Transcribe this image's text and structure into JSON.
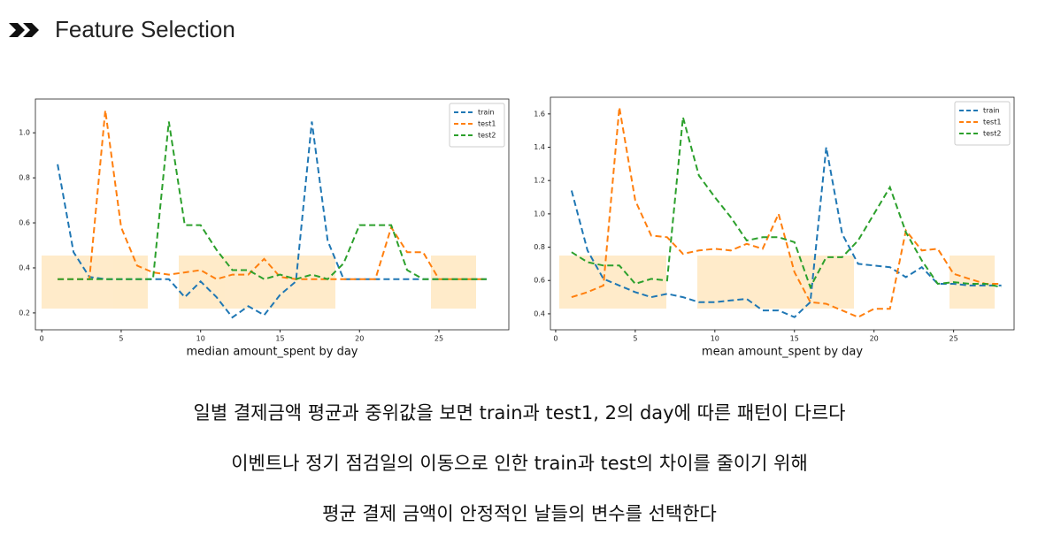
{
  "header": {
    "title": "Feature Selection"
  },
  "chart_data": [
    {
      "type": "line",
      "xlabel": "median amount_spent by day",
      "x": [
        1,
        2,
        3,
        4,
        5,
        6,
        7,
        8,
        9,
        10,
        11,
        12,
        13,
        14,
        15,
        16,
        17,
        18,
        19,
        20,
        21,
        22,
        23,
        24,
        25,
        26,
        27,
        28
      ],
      "xlim": [
        -0.4,
        29.4
      ],
      "xticks": [
        0,
        5,
        10,
        15,
        20,
        25
      ],
      "ylim": [
        0.125,
        1.15
      ],
      "yticks": [
        0.2,
        0.4,
        0.6,
        0.8,
        {
          "value": 1,
          "label": "1.0"
        }
      ],
      "legend": "upper right",
      "series": [
        {
          "name": "train",
          "color": "#1f77b4",
          "values": [
            0.86,
            0.47,
            0.36,
            0.35,
            0.35,
            0.35,
            0.35,
            0.35,
            0.27,
            0.34,
            0.27,
            0.18,
            0.23,
            0.19,
            0.28,
            0.34,
            1.05,
            0.52,
            0.35,
            0.35,
            0.35,
            0.35,
            0.35,
            0.35,
            0.35,
            0.35,
            0.35,
            0.35
          ]
        },
        {
          "name": "test1",
          "color": "#ff7f0e",
          "values": [
            0.35,
            0.35,
            0.35,
            1.1,
            0.58,
            0.41,
            0.38,
            0.37,
            0.38,
            0.39,
            0.35,
            0.37,
            0.37,
            0.44,
            0.36,
            0.35,
            0.35,
            0.35,
            0.35,
            0.35,
            0.35,
            0.58,
            0.47,
            0.47,
            0.35,
            0.35,
            0.35,
            0.35
          ]
        },
        {
          "name": "test2",
          "color": "#2ca02c",
          "values": [
            0.35,
            0.35,
            0.35,
            0.35,
            0.35,
            0.35,
            0.35,
            1.05,
            0.59,
            0.59,
            0.48,
            0.39,
            0.39,
            0.35,
            0.37,
            0.35,
            0.37,
            0.35,
            0.42,
            0.59,
            0.59,
            0.59,
            0.39,
            0.35,
            0.35,
            0.35,
            0.35,
            0.35
          ]
        }
      ]
    },
    {
      "type": "line",
      "xlabel": "mean amount_spent by day",
      "x": [
        1,
        2,
        3,
        4,
        5,
        6,
        7,
        8,
        9,
        10,
        11,
        12,
        13,
        14,
        15,
        16,
        17,
        18,
        19,
        20,
        21,
        22,
        23,
        24,
        25,
        26,
        27,
        28
      ],
      "xlim": [
        -0.33,
        28.8
      ],
      "xticks": [
        0,
        5,
        10,
        15,
        20,
        25
      ],
      "ylim": [
        0.304,
        1.7
      ],
      "yticks": [
        0.4,
        0.6,
        0.8,
        {
          "value": 1,
          "label": "1.0"
        },
        1.2,
        1.4,
        1.6
      ],
      "legend": "upper right",
      "series": [
        {
          "name": "train",
          "color": "#1f77b4",
          "values": [
            1.14,
            0.78,
            0.61,
            0.57,
            0.53,
            0.5,
            0.52,
            0.5,
            0.47,
            0.47,
            0.48,
            0.49,
            0.42,
            0.42,
            0.38,
            0.47,
            1.4,
            0.88,
            0.7,
            0.69,
            0.68,
            0.62,
            0.68,
            0.58,
            0.58,
            0.57,
            0.57,
            0.57
          ]
        },
        {
          "name": "test1",
          "color": "#ff7f0e",
          "values": [
            0.5,
            0.53,
            0.57,
            1.64,
            1.08,
            0.87,
            0.86,
            0.76,
            0.78,
            0.79,
            0.78,
            0.82,
            0.79,
            1.0,
            0.65,
            0.47,
            0.46,
            0.42,
            0.38,
            0.43,
            0.43,
            0.9,
            0.78,
            0.79,
            0.64,
            0.61,
            0.58,
            0.58
          ]
        },
        {
          "name": "test2",
          "color": "#2ca02c",
          "values": [
            0.77,
            0.71,
            0.69,
            0.69,
            0.58,
            0.61,
            0.6,
            1.58,
            1.23,
            1.1,
            0.98,
            0.84,
            0.86,
            0.86,
            0.83,
            0.56,
            0.74,
            0.74,
            0.84,
            1.0,
            1.16,
            0.89,
            0.72,
            0.58,
            0.59,
            0.58,
            0.58,
            0.56
          ]
        }
      ]
    }
  ],
  "body": {
    "lines": [
      "일별 결제금액 평균과 중위값을 보면 train과 test1, 2의 day에 따른 패턴이 다르다",
      "이벤트나 정기 점검일의 이동으로 인한 train과 test의 차이를 줄이기 위해",
      "평균 결제 금액이 안정적인 날들의 변수를 선택한다"
    ]
  }
}
